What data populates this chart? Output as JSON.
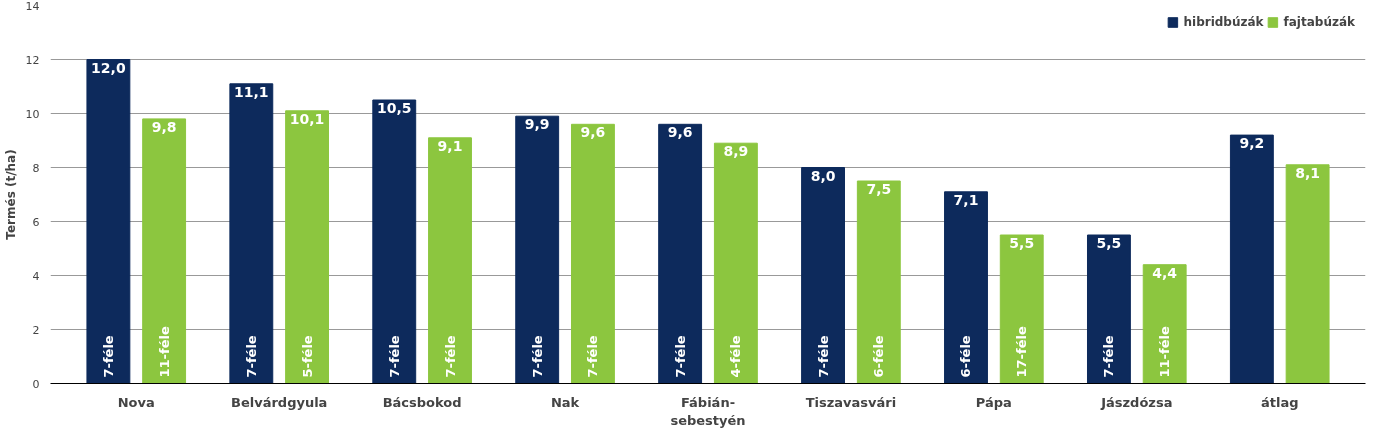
{
  "chart_data": {
    "type": "bar",
    "ylabel": "Termés (t/ha)",
    "categories": [
      "Nova",
      "Belvárdgyula",
      "Bácsbokod",
      "Nak",
      "Fábián-\nsebestyén",
      "Tiszavasvári",
      "Pápa",
      "Jászdózsa",
      "átlag"
    ],
    "series": [
      {
        "name": "hibridbúzák",
        "color": "#0d2a5c",
        "values": [
          12.0,
          11.1,
          10.5,
          9.9,
          9.6,
          8.0,
          7.1,
          5.5,
          9.2
        ],
        "value_labels": [
          "12,0",
          "11,1",
          "10,5",
          "9,9",
          "9,6",
          "8,0",
          "7,1",
          "5,5",
          "9,2"
        ]
      },
      {
        "name": "fajtabúzák",
        "color": "#8cc63f",
        "values": [
          9.8,
          10.1,
          9.1,
          9.6,
          8.9,
          7.5,
          5.5,
          4.4,
          8.1
        ],
        "value_labels": [
          "9,8",
          "10,1",
          "9,1",
          "9,6",
          "8,9",
          "7,5",
          "5,5",
          "4,4",
          "8,1"
        ]
      }
    ],
    "annotations": [
      "7-féle",
      "11-féle",
      "7-féle",
      "5-féle",
      "7-féle",
      "7-féle",
      "7-féle",
      "7-féle",
      "7-féle",
      "4-féle",
      "7-féle",
      "6-féle",
      "6-féle",
      "17-féle",
      "7-féle",
      "11-féle"
    ],
    "ylim": [
      0,
      14
    ],
    "yticks": [
      0,
      2,
      4,
      6,
      8,
      10,
      12,
      14
    ],
    "grid": "y",
    "legend": "top right"
  }
}
